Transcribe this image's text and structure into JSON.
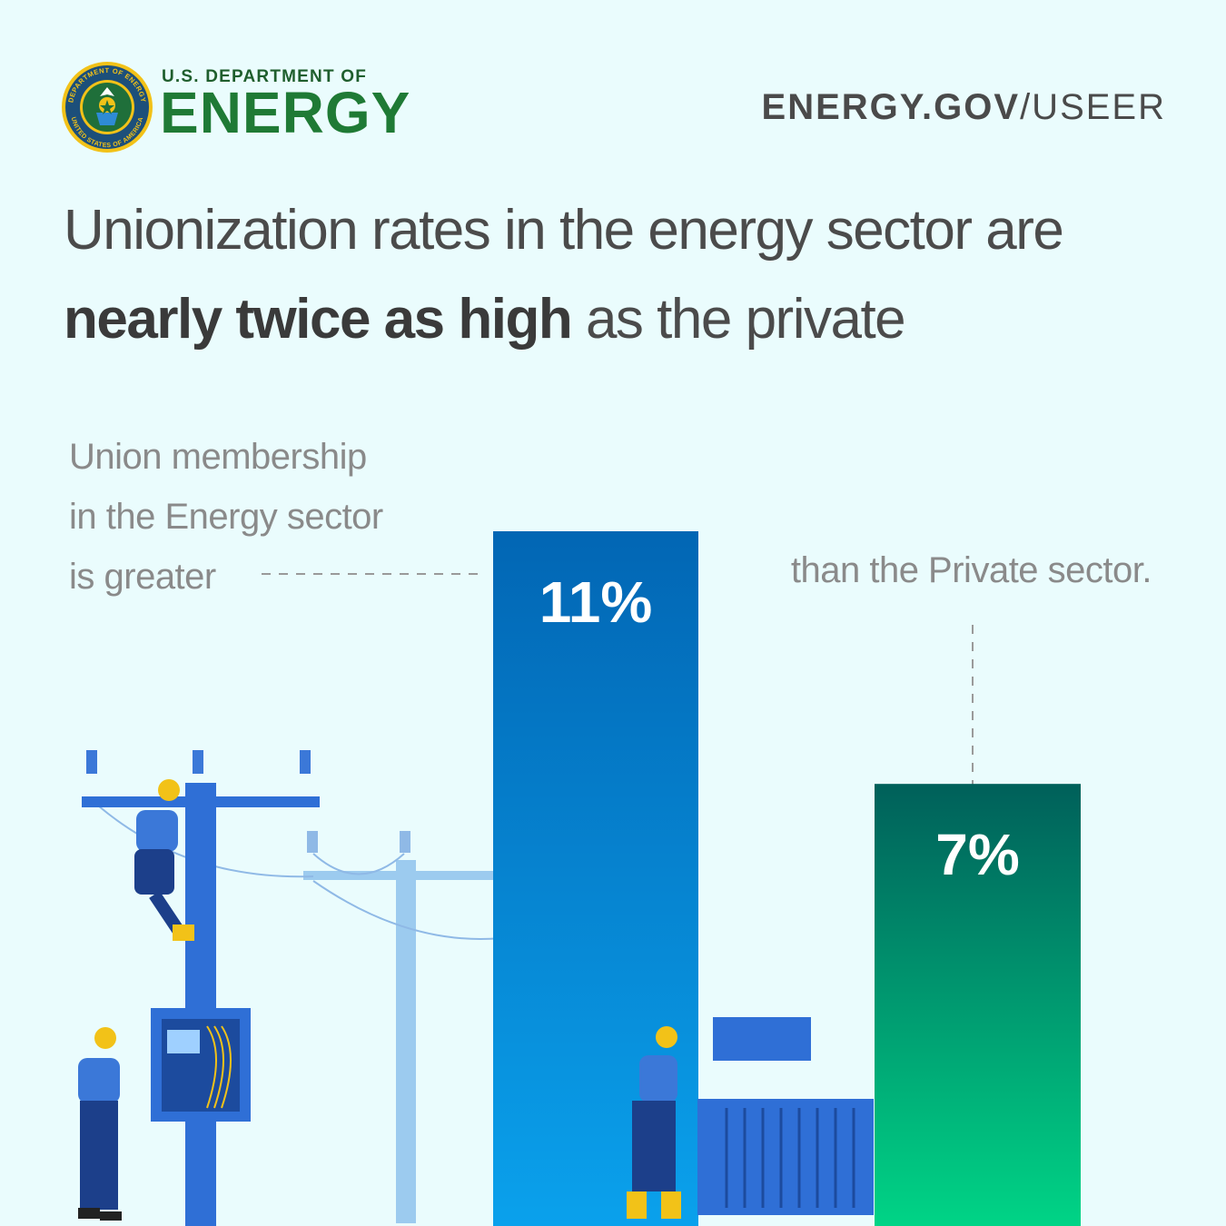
{
  "header": {
    "org_small": "U.S. DEPARTMENT OF",
    "org_big": "ENERGY",
    "seal_text_top": "DEPARTMENT OF ENERGY",
    "seal_text_bottom": "UNITED STATES OF AMERICA",
    "site_bold": "ENERGY.GOV",
    "site_rest": "/USEER"
  },
  "headline": {
    "line1": "Unionization rates in the energy sector are",
    "bold": "nearly twice as high",
    "rest": " as the private"
  },
  "annotations": {
    "left_lines": [
      "Union membership",
      "in the Energy sector",
      "is greater"
    ],
    "right": "than the Private sector."
  },
  "colors": {
    "energy_top": "#0266b4",
    "energy_bottom": "#0aa1ec",
    "private_top": "#00605a",
    "private_bottom": "#00d486",
    "background": "#eafcfd",
    "pole_dark": "#2f6fd6",
    "pole_light": "#9ccbef"
  },
  "chart_data": {
    "type": "bar",
    "title": "Unionization rates in the energy sector are nearly twice as high as the private",
    "categories": [
      "Energy sector",
      "Private sector"
    ],
    "values": [
      11,
      7
    ],
    "value_labels": [
      "11%",
      "7%"
    ],
    "unit": "%",
    "ylim": [
      0,
      15.5
    ],
    "xlabel": "",
    "ylabel": "",
    "grid": false,
    "legend": "none"
  }
}
